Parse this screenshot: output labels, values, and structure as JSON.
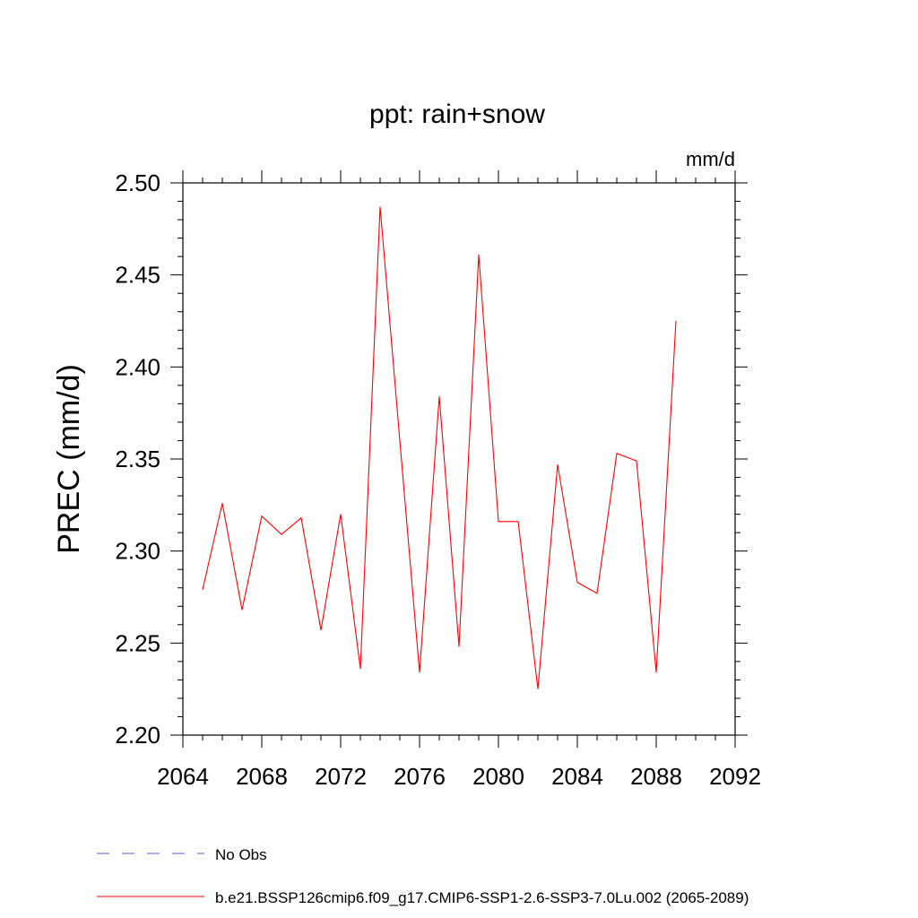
{
  "chart_data": {
    "type": "line",
    "title": "ppt: rain+snow",
    "units_label": "mm/d",
    "ylabel": "PREC  (mm/d)",
    "xlabel": "",
    "xlim": [
      2064,
      2092
    ],
    "ylim": [
      2.2,
      2.5
    ],
    "x_ticks": [
      2064,
      2068,
      2072,
      2076,
      2080,
      2084,
      2088,
      2092
    ],
    "x_tick_labels": [
      "2064",
      "2068",
      "2072",
      "2076",
      "2080",
      "2084",
      "2088",
      "2092"
    ],
    "y_ticks": [
      2.2,
      2.25,
      2.3,
      2.35,
      2.4,
      2.45,
      2.5
    ],
    "y_tick_labels": [
      "2.20",
      "2.25",
      "2.30",
      "2.35",
      "2.40",
      "2.45",
      "2.50"
    ],
    "x": [
      2065,
      2066,
      2067,
      2068,
      2069,
      2070,
      2071,
      2072,
      2073,
      2074,
      2075,
      2076,
      2077,
      2078,
      2079,
      2080,
      2081,
      2082,
      2083,
      2084,
      2085,
      2086,
      2087,
      2088,
      2089
    ],
    "series": [
      {
        "name": "b.e21.BSSP126cmip6.f09_g17.CMIP6-SSP1-2.6-SSP3-7.0Lu.002 (2065-2089)",
        "color": "#ff0000",
        "values": [
          2.279,
          2.326,
          2.268,
          2.319,
          2.309,
          2.318,
          2.257,
          2.32,
          2.236,
          2.487,
          2.36,
          2.234,
          2.384,
          2.248,
          2.461,
          2.316,
          2.316,
          2.225,
          2.347,
          2.283,
          2.277,
          2.353,
          2.349,
          2.234,
          2.425
        ]
      }
    ],
    "legend": [
      {
        "label": "No Obs",
        "color": "#6a5acd",
        "style": "dashed"
      },
      {
        "label": "b.e21.BSSP126cmip6.f09_g17.CMIP6-SSP1-2.6-SSP3-7.0Lu.002 (2065-2089)",
        "color": "#ff0000",
        "style": "solid"
      }
    ],
    "legend_position": "bottom-left"
  }
}
